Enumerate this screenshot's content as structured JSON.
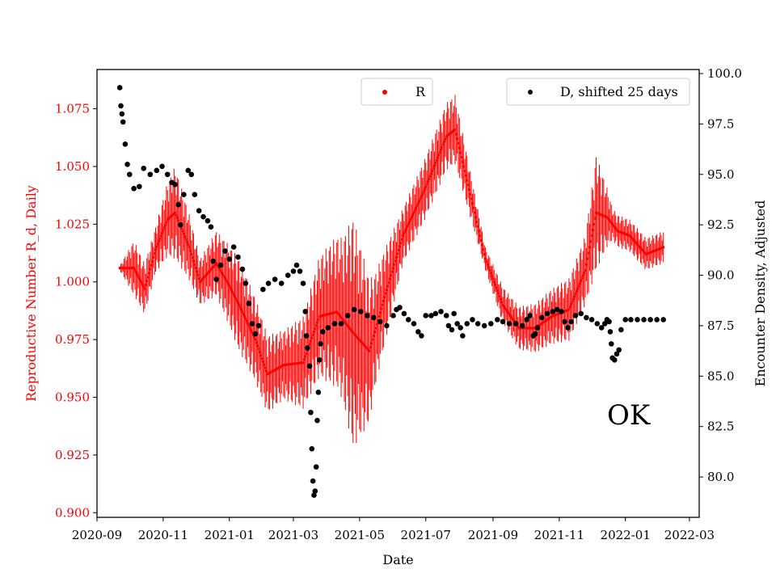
{
  "chart_data": {
    "type": "scatter",
    "xlabel": "Date",
    "y_left_label": "Reproductive Number R_d, Daily",
    "y_right_label": "Encounter Density, Adjusted",
    "annotation": "OK",
    "x_range": [
      "2020-09-01",
      "2022-03-10"
    ],
    "x_ticks": [
      "2020-09",
      "2020-11",
      "2021-01",
      "2021-03",
      "2021-05",
      "2021-07",
      "2021-09",
      "2021-11",
      "2022-01",
      "2022-03"
    ],
    "y_left_range": [
      0.898,
      1.092
    ],
    "y_left_ticks": [
      "0.900",
      "0.925",
      "0.950",
      "0.975",
      "1.000",
      "1.025",
      "1.050",
      "1.075"
    ],
    "y_right_range": [
      78.0,
      100.2
    ],
    "y_right_ticks": [
      "80.0",
      "82.5",
      "85.0",
      "87.5",
      "90.0",
      "92.5",
      "95.0",
      "97.5",
      "100.0"
    ],
    "legend_left": {
      "label": "R",
      "position": "top-center"
    },
    "legend_right": {
      "label": "D, shifted 25 days",
      "position": "top-right"
    },
    "colors": {
      "R": "#ff0000",
      "D": "#000000",
      "left_axis_text": "#ff0000"
    },
    "series": [
      {
        "name": "R",
        "axis": "left",
        "mean": [
          [
            "2020-09-22",
            1.006
          ],
          [
            "2020-10-05",
            1.006
          ],
          [
            "2020-10-15",
            0.997
          ],
          [
            "2020-10-25",
            1.014
          ],
          [
            "2020-11-05",
            1.027
          ],
          [
            "2020-11-12",
            1.03
          ],
          [
            "2020-11-25",
            1.015
          ],
          [
            "2020-12-05",
            1.0
          ],
          [
            "2020-12-20",
            1.008
          ],
          [
            "2020-12-30",
            1.0
          ],
          [
            "2021-01-10",
            0.99
          ],
          [
            "2021-01-25",
            0.975
          ],
          [
            "2021-02-05",
            0.96
          ],
          [
            "2021-02-20",
            0.964
          ],
          [
            "2021-03-10",
            0.965
          ],
          [
            "2021-03-25",
            0.985
          ],
          [
            "2021-04-10",
            0.987
          ],
          [
            "2021-04-25",
            0.978
          ],
          [
            "2021-05-10",
            0.97
          ],
          [
            "2021-05-25",
            0.995
          ],
          [
            "2021-06-10",
            1.02
          ],
          [
            "2021-06-30",
            1.04
          ],
          [
            "2021-07-20",
            1.063
          ],
          [
            "2021-07-28",
            1.066
          ],
          [
            "2021-08-10",
            1.04
          ],
          [
            "2021-08-25",
            1.01
          ],
          [
            "2021-09-10",
            0.99
          ],
          [
            "2021-09-25",
            0.98
          ],
          [
            "2021-10-10",
            0.98
          ],
          [
            "2021-10-25",
            0.985
          ],
          [
            "2021-11-10",
            0.988
          ],
          [
            "2021-11-25",
            1.005
          ],
          [
            "2021-12-05",
            1.03
          ],
          [
            "2021-12-15",
            1.028
          ],
          [
            "2021-12-25",
            1.022
          ],
          [
            "2022-01-05",
            1.02
          ],
          [
            "2022-01-20",
            1.012
          ],
          [
            "2022-02-05",
            1.015
          ]
        ],
        "band": [
          [
            "2020-09-22",
            0.001
          ],
          [
            "2020-10-05",
            0.012
          ],
          [
            "2020-10-25",
            0.01
          ],
          [
            "2020-11-12",
            0.02
          ],
          [
            "2020-12-05",
            0.01
          ],
          [
            "2021-01-10",
            0.02
          ],
          [
            "2021-02-20",
            0.015
          ],
          [
            "2021-03-10",
            0.02
          ],
          [
            "2021-04-15",
            0.035
          ],
          [
            "2021-04-25",
            0.05
          ],
          [
            "2021-05-15",
            0.025
          ],
          [
            "2021-06-10",
            0.012
          ],
          [
            "2021-07-28",
            0.015
          ],
          [
            "2021-08-25",
            0.005
          ],
          [
            "2021-09-10",
            0.008
          ],
          [
            "2021-10-25",
            0.012
          ],
          [
            "2021-11-25",
            0.015
          ],
          [
            "2021-12-05",
            0.025
          ],
          [
            "2021-12-20",
            0.007
          ],
          [
            "2022-02-05",
            0.007
          ]
        ]
      },
      {
        "name": "D, shifted 25 days",
        "axis": "right",
        "points": [
          [
            "2020-09-22",
            99.3
          ],
          [
            "2020-09-23",
            98.4
          ],
          [
            "2020-09-24",
            98.0
          ],
          [
            "2020-09-25",
            97.6
          ],
          [
            "2020-09-27",
            96.5
          ],
          [
            "2020-09-29",
            95.5
          ],
          [
            "2020-10-01",
            95.0
          ],
          [
            "2020-10-05",
            94.3
          ],
          [
            "2020-10-10",
            94.4
          ],
          [
            "2020-10-14",
            95.3
          ],
          [
            "2020-10-20",
            95.0
          ],
          [
            "2020-10-26",
            95.2
          ],
          [
            "2020-10-31",
            95.4
          ],
          [
            "2020-11-05",
            95.0
          ],
          [
            "2020-11-09",
            94.6
          ],
          [
            "2020-11-12",
            94.5
          ],
          [
            "2020-11-15",
            93.5
          ],
          [
            "2020-11-17",
            92.5
          ],
          [
            "2020-11-20",
            94.0
          ],
          [
            "2020-11-24",
            95.2
          ],
          [
            "2020-11-27",
            95.0
          ],
          [
            "2020-11-30",
            94.0
          ],
          [
            "2020-12-04",
            93.2
          ],
          [
            "2020-12-08",
            92.9
          ],
          [
            "2020-12-12",
            92.7
          ],
          [
            "2020-12-15",
            92.4
          ],
          [
            "2020-12-17",
            90.7
          ],
          [
            "2020-12-20",
            89.8
          ],
          [
            "2020-12-24",
            90.5
          ],
          [
            "2020-12-28",
            91.2
          ],
          [
            "2021-01-01",
            90.8
          ],
          [
            "2021-01-05",
            91.4
          ],
          [
            "2021-01-09",
            90.9
          ],
          [
            "2021-01-13",
            90.3
          ],
          [
            "2021-01-16",
            89.6
          ],
          [
            "2021-01-19",
            88.6
          ],
          [
            "2021-01-22",
            87.6
          ],
          [
            "2021-01-25",
            87.1
          ],
          [
            "2021-01-28",
            87.5
          ],
          [
            "2021-02-01",
            89.3
          ],
          [
            "2021-02-06",
            89.6
          ],
          [
            "2021-02-12",
            89.8
          ],
          [
            "2021-02-18",
            89.6
          ],
          [
            "2021-02-24",
            90.0
          ],
          [
            "2021-03-01",
            90.2
          ],
          [
            "2021-03-04",
            90.5
          ],
          [
            "2021-03-07",
            90.2
          ],
          [
            "2021-03-10",
            89.6
          ],
          [
            "2021-03-12",
            88.2
          ],
          [
            "2021-03-13",
            87.0
          ],
          [
            "2021-03-14",
            86.4
          ],
          [
            "2021-03-16",
            85.5
          ],
          [
            "2021-03-17",
            83.2
          ],
          [
            "2021-03-18",
            81.4
          ],
          [
            "2021-03-19",
            79.8
          ],
          [
            "2021-03-20",
            79.1
          ],
          [
            "2021-03-21",
            79.3
          ],
          [
            "2021-03-22",
            80.5
          ],
          [
            "2021-03-23",
            82.8
          ],
          [
            "2021-03-24",
            84.2
          ],
          [
            "2021-03-25",
            85.8
          ],
          [
            "2021-03-26",
            86.6
          ],
          [
            "2021-03-28",
            87.2
          ],
          [
            "2021-04-02",
            87.4
          ],
          [
            "2021-04-08",
            87.6
          ],
          [
            "2021-04-14",
            87.6
          ],
          [
            "2021-04-20",
            88.0
          ],
          [
            "2021-04-26",
            88.3
          ],
          [
            "2021-05-02",
            88.2
          ],
          [
            "2021-05-08",
            88.0
          ],
          [
            "2021-05-14",
            87.9
          ],
          [
            "2021-05-20",
            87.7
          ],
          [
            "2021-05-26",
            87.5
          ],
          [
            "2021-06-01",
            88.0
          ],
          [
            "2021-06-04",
            88.3
          ],
          [
            "2021-06-07",
            88.4
          ],
          [
            "2021-06-11",
            88.1
          ],
          [
            "2021-06-15",
            87.8
          ],
          [
            "2021-06-20",
            87.6
          ],
          [
            "2021-06-24",
            87.2
          ],
          [
            "2021-06-27",
            87.0
          ],
          [
            "2021-07-01",
            88.0
          ],
          [
            "2021-07-06",
            88.0
          ],
          [
            "2021-07-10",
            88.1
          ],
          [
            "2021-07-15",
            88.2
          ],
          [
            "2021-07-20",
            88.0
          ],
          [
            "2021-07-22",
            87.5
          ],
          [
            "2021-07-25",
            87.3
          ],
          [
            "2021-07-27",
            88.1
          ],
          [
            "2021-07-30",
            87.6
          ],
          [
            "2021-08-02",
            87.4
          ],
          [
            "2021-08-04",
            87.0
          ],
          [
            "2021-08-08",
            87.6
          ],
          [
            "2021-08-13",
            87.8
          ],
          [
            "2021-08-18",
            87.6
          ],
          [
            "2021-08-24",
            87.5
          ],
          [
            "2021-08-30",
            87.6
          ],
          [
            "2021-09-05",
            87.8
          ],
          [
            "2021-09-10",
            87.7
          ],
          [
            "2021-09-16",
            87.6
          ],
          [
            "2021-09-22",
            87.6
          ],
          [
            "2021-09-28",
            87.5
          ],
          [
            "2021-10-02",
            87.8
          ],
          [
            "2021-10-05",
            88.0
          ],
          [
            "2021-10-08",
            87.0
          ],
          [
            "2021-10-10",
            87.1
          ],
          [
            "2021-10-12",
            87.4
          ],
          [
            "2021-10-16",
            87.9
          ],
          [
            "2021-10-21",
            88.1
          ],
          [
            "2021-10-26",
            88.2
          ],
          [
            "2021-10-30",
            88.3
          ],
          [
            "2021-11-03",
            88.2
          ],
          [
            "2021-11-06",
            87.7
          ],
          [
            "2021-11-09",
            87.4
          ],
          [
            "2021-11-12",
            87.7
          ],
          [
            "2021-11-16",
            88.0
          ],
          [
            "2021-11-21",
            88.1
          ],
          [
            "2021-11-26",
            87.9
          ],
          [
            "2021-12-01",
            87.8
          ],
          [
            "2021-12-06",
            87.6
          ],
          [
            "2021-12-10",
            87.4
          ],
          [
            "2021-12-13",
            87.6
          ],
          [
            "2021-12-15",
            87.8
          ],
          [
            "2021-12-17",
            87.7
          ],
          [
            "2021-12-18",
            87.2
          ],
          [
            "2021-12-19",
            86.6
          ],
          [
            "2021-12-20",
            85.9
          ],
          [
            "2021-12-22",
            85.8
          ],
          [
            "2021-12-24",
            86.1
          ],
          [
            "2021-12-26",
            86.3
          ],
          [
            "2021-12-28",
            87.3
          ],
          [
            "2022-01-01",
            87.8
          ],
          [
            "2022-01-06",
            87.8
          ],
          [
            "2022-01-12",
            87.8
          ],
          [
            "2022-01-18",
            87.8
          ],
          [
            "2022-01-24",
            87.8
          ],
          [
            "2022-01-30",
            87.8
          ],
          [
            "2022-02-05",
            87.8
          ]
        ]
      }
    ]
  }
}
